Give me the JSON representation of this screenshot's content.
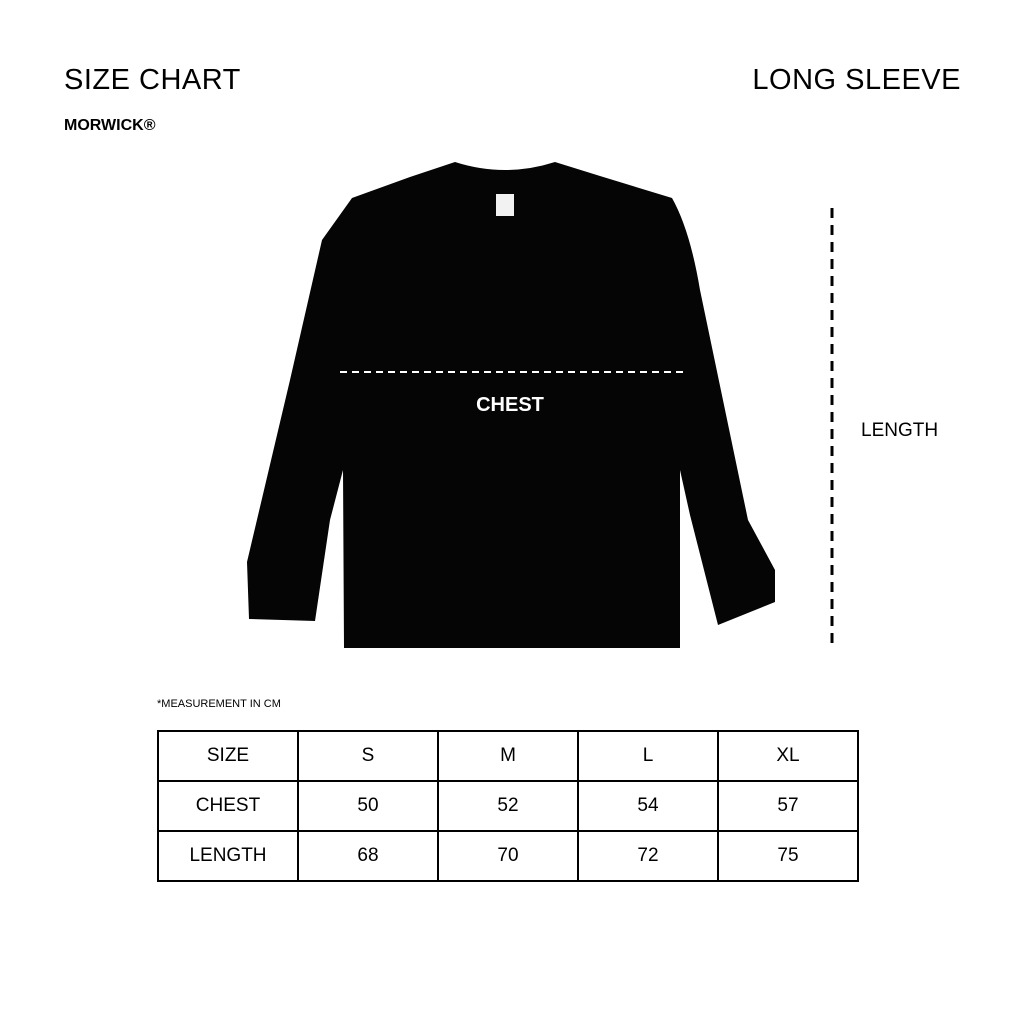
{
  "header": {
    "title": "SIZE CHART",
    "product_type": "LONG SLEEVE",
    "brand": "MORWICK®"
  },
  "diagram": {
    "chest_label": "CHEST",
    "length_label": "LENGTH",
    "garment_color": "#000000"
  },
  "table": {
    "note": "*MEASUREMENT IN CM",
    "rows": [
      [
        "SIZE",
        "S",
        "M",
        "L",
        "XL"
      ],
      [
        "CHEST",
        "50",
        "52",
        "54",
        "57"
      ],
      [
        "LENGTH",
        "68",
        "70",
        "72",
        "75"
      ]
    ]
  }
}
